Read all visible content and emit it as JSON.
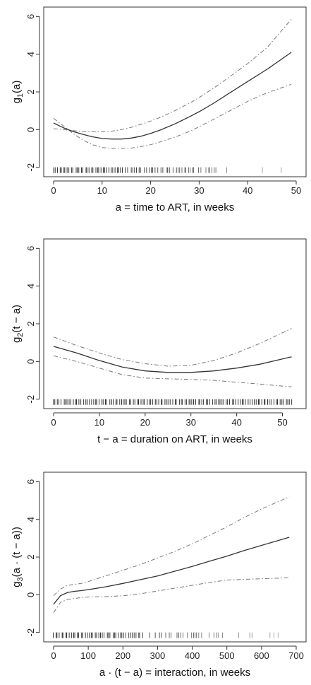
{
  "chart_data": [
    {
      "type": "line",
      "xlabel": "a = time to ART, in weeks",
      "ylabel": "g1(a)",
      "ylabel_parts": {
        "base": "g",
        "sub": "1",
        "arg": "(a)"
      },
      "xlim": [
        0,
        50
      ],
      "ylim": [
        -2.2,
        6.2
      ],
      "xticks": [
        0,
        10,
        20,
        30,
        40,
        50
      ],
      "yticks": [
        -2,
        0,
        2,
        4,
        6
      ],
      "series": [
        {
          "role": "estimate",
          "x": [
            0,
            2,
            4,
            6,
            8,
            10,
            12,
            14,
            16,
            18,
            20,
            22,
            25,
            28,
            30,
            33,
            36,
            40,
            44,
            49
          ],
          "y": [
            0.35,
            0.1,
            -0.1,
            -0.25,
            -0.38,
            -0.47,
            -0.5,
            -0.5,
            -0.45,
            -0.35,
            -0.2,
            -0.02,
            0.3,
            0.68,
            0.95,
            1.4,
            1.9,
            2.55,
            3.2,
            4.1
          ]
        },
        {
          "role": "upper",
          "x": [
            0,
            2,
            4,
            6,
            8,
            10,
            12,
            14,
            16,
            18,
            20,
            22,
            25,
            28,
            30,
            33,
            36,
            40,
            44,
            49
          ],
          "y": [
            0.05,
            0.0,
            -0.05,
            -0.1,
            -0.12,
            -0.12,
            -0.08,
            0.0,
            0.12,
            0.28,
            0.45,
            0.65,
            1.0,
            1.4,
            1.7,
            2.2,
            2.75,
            3.5,
            4.35,
            5.85
          ]
        },
        {
          "role": "lower",
          "x": [
            0,
            2,
            4,
            6,
            8,
            10,
            12,
            14,
            16,
            18,
            20,
            22,
            25,
            28,
            30,
            33,
            36,
            40,
            44,
            49
          ],
          "y": [
            0.6,
            0.2,
            -0.2,
            -0.55,
            -0.8,
            -0.95,
            -1.0,
            -1.0,
            -0.98,
            -0.9,
            -0.8,
            -0.65,
            -0.4,
            -0.1,
            0.15,
            0.55,
            0.95,
            1.5,
            1.95,
            2.4
          ]
        }
      ],
      "rug": {
        "y": -2.15,
        "x_from": 0,
        "x_to": 49,
        "density": [
          1,
          1,
          1,
          1,
          0.9,
          0.8,
          0.7,
          0.6,
          0.5,
          0.4,
          0.3,
          0.2,
          0.15
        ]
      }
    },
    {
      "type": "line",
      "xlabel": "t − a = duration on ART, in weeks",
      "ylabel": "g2(t − a)",
      "ylabel_parts": {
        "base": "g",
        "sub": "2",
        "arg": "(t − a)"
      },
      "xlim": [
        0,
        53
      ],
      "ylim": [
        -2.2,
        6.2
      ],
      "xticks": [
        0,
        10,
        20,
        30,
        40,
        50
      ],
      "yticks": [
        -2,
        0,
        2,
        4,
        6
      ],
      "series": [
        {
          "role": "estimate",
          "x": [
            0,
            5,
            10,
            15,
            20,
            25,
            30,
            35,
            40,
            45,
            52
          ],
          "y": [
            0.8,
            0.45,
            0.05,
            -0.3,
            -0.5,
            -0.58,
            -0.58,
            -0.5,
            -0.35,
            -0.15,
            0.25
          ]
        },
        {
          "role": "upper",
          "x": [
            0,
            5,
            10,
            15,
            20,
            25,
            30,
            35,
            40,
            45,
            52
          ],
          "y": [
            1.3,
            0.85,
            0.45,
            0.1,
            -0.12,
            -0.25,
            -0.2,
            0.05,
            0.45,
            0.95,
            1.75
          ]
        },
        {
          "role": "lower",
          "x": [
            0,
            5,
            10,
            15,
            20,
            25,
            30,
            35,
            40,
            45,
            52
          ],
          "y": [
            0.3,
            0.0,
            -0.35,
            -0.7,
            -0.88,
            -0.92,
            -0.95,
            -1.0,
            -1.1,
            -1.2,
            -1.35
          ]
        }
      ],
      "rug": {
        "y": -2.15,
        "x_from": 0,
        "x_to": 52,
        "density": [
          1,
          1,
          1,
          1,
          1,
          1,
          1,
          1,
          1,
          1,
          1,
          1,
          1
        ]
      }
    },
    {
      "type": "line",
      "xlabel": "a · (t − a) = interaction, in weeks",
      "ylabel": "g3(a · (t − a))",
      "ylabel_parts": {
        "base": "g",
        "sub": "3",
        "arg": "(a · (t − a))"
      },
      "xlim": [
        0,
        700
      ],
      "ylim": [
        -2.2,
        6.2
      ],
      "xticks": [
        0,
        100,
        200,
        300,
        400,
        500,
        600,
        700
      ],
      "yticks": [
        -2,
        0,
        2,
        4,
        6
      ],
      "series": [
        {
          "role": "estimate",
          "x": [
            0,
            20,
            40,
            60,
            80,
            100,
            150,
            200,
            250,
            300,
            350,
            400,
            450,
            500,
            550,
            600,
            680
          ],
          "y": [
            -0.5,
            -0.05,
            0.12,
            0.18,
            0.22,
            0.27,
            0.42,
            0.6,
            0.8,
            1.0,
            1.25,
            1.5,
            1.78,
            2.05,
            2.35,
            2.62,
            3.05
          ]
        },
        {
          "role": "upper",
          "x": [
            0,
            20,
            40,
            60,
            80,
            100,
            150,
            200,
            250,
            300,
            350,
            400,
            450,
            500,
            550,
            600,
            680
          ],
          "y": [
            -0.05,
            0.3,
            0.5,
            0.55,
            0.6,
            0.7,
            1.0,
            1.3,
            1.6,
            1.95,
            2.3,
            2.7,
            3.15,
            3.6,
            4.1,
            4.55,
            5.2
          ]
        },
        {
          "role": "lower",
          "x": [
            0,
            20,
            40,
            60,
            80,
            100,
            150,
            200,
            250,
            300,
            350,
            400,
            450,
            500,
            550,
            600,
            680
          ],
          "y": [
            -0.95,
            -0.4,
            -0.25,
            -0.2,
            -0.15,
            -0.12,
            -0.1,
            -0.05,
            0.05,
            0.2,
            0.35,
            0.5,
            0.65,
            0.78,
            0.82,
            0.85,
            0.9
          ]
        }
      ],
      "rug": {
        "y": -2.15,
        "x_from": 0,
        "x_to": 680,
        "density": [
          1,
          1,
          1,
          0.95,
          0.85,
          0.75,
          0.6,
          0.5,
          0.4,
          0.3,
          0.2,
          0.12,
          0.08
        ]
      }
    }
  ]
}
